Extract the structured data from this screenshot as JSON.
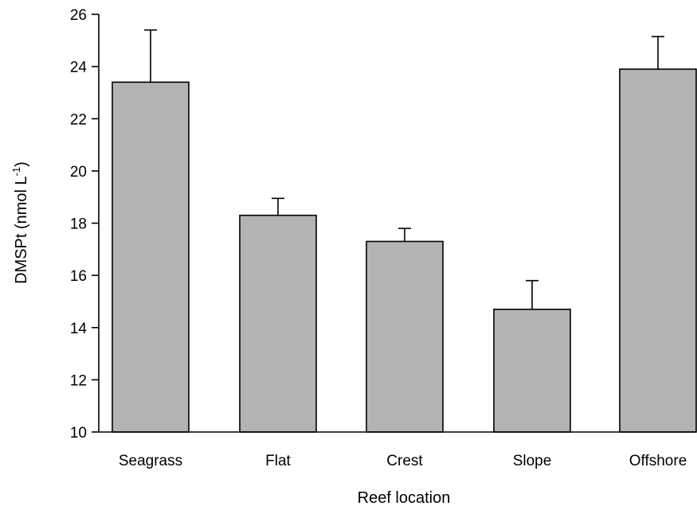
{
  "chart_data": {
    "type": "bar",
    "title": "",
    "xlabel": "Reef location",
    "ylabel": "DMSPt (nmol L",
    "ylabel_superscript": "-1",
    "ylabel_suffix": ")",
    "categories": [
      "Seagrass",
      "Flat",
      "Crest",
      "Slope",
      "Offshore"
    ],
    "values": [
      23.4,
      18.3,
      17.3,
      14.7,
      23.9
    ],
    "error_upper": [
      2.0,
      0.65,
      0.5,
      1.1,
      1.25
    ],
    "ylim": [
      10,
      26
    ],
    "yticks": [
      10,
      12,
      14,
      16,
      18,
      20,
      22,
      24,
      26
    ],
    "bar_color": "#b3b3b3",
    "grid": false,
    "legend": "none"
  }
}
